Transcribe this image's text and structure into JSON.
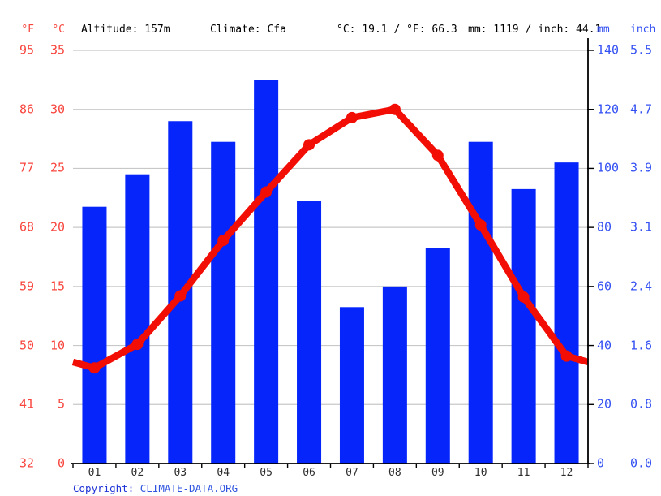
{
  "header": {
    "fahrenheit_label": "°F",
    "celsius_label": "°C",
    "altitude": "Altitude: 157m",
    "climate": "Climate: Cfa",
    "temperature_summary": "°C: 19.1 / °F: 66.3",
    "precipitation_summary": "mm: 1119 / inch: 44.1",
    "mm_label": "mm",
    "inch_label": "inch"
  },
  "axes": {
    "fahrenheit_ticks": [
      "95",
      "86",
      "77",
      "68",
      "59",
      "50",
      "41",
      "32"
    ],
    "celsius_ticks": [
      "35",
      "30",
      "25",
      "20",
      "15",
      "10",
      "5",
      "0"
    ],
    "mm_ticks": [
      "140",
      "120",
      "100",
      "80",
      "60",
      "40",
      "20",
      "0"
    ],
    "inch_ticks": [
      "5.5",
      "4.7",
      "3.9",
      "3.1",
      "2.4",
      "1.6",
      "0.8",
      "0.0"
    ]
  },
  "footer": {
    "copyright_label": "Copyright: ",
    "copyright_link": "CLIMATE-DATA.ORG"
  },
  "colors": {
    "bar_blue": "#0525fa",
    "line_red": "#f20d05",
    "red_text": "#f8453e",
    "blue_text": "#3350f2",
    "grid_gray": "#c8c8c8",
    "axis_black": "#000000"
  },
  "chart_data": {
    "type": "bar",
    "subtype": "climate combo: precipitation bars + temperature line",
    "categories": [
      "01",
      "02",
      "03",
      "04",
      "05",
      "06",
      "07",
      "08",
      "09",
      "10",
      "11",
      "12"
    ],
    "series": [
      {
        "name": "precipitation",
        "type": "bar",
        "unit": "mm",
        "values": [
          87,
          98,
          116,
          109,
          130,
          89,
          53,
          60,
          73,
          109,
          93,
          102
        ]
      },
      {
        "name": "temperature",
        "type": "line",
        "unit": "°C",
        "values": [
          8.1,
          10.1,
          14.2,
          18.9,
          23.0,
          27.0,
          29.3,
          30.0,
          26.1,
          20.2,
          14.1,
          9.1
        ],
        "edge_extension_value": 8.6
      }
    ],
    "left_axis": {
      "unit": "°C",
      "min": 0,
      "max": 35,
      "secondary_unit": "°F",
      "secondary_min": 32,
      "secondary_max": 95
    },
    "right_axis": {
      "unit": "mm",
      "min": 0,
      "max": 140,
      "secondary_unit": "inch",
      "secondary_min": 0.0,
      "secondary_max": 5.5
    },
    "grid": true,
    "legend": "none",
    "annual_mean_temp_c": 19.1,
    "annual_mean_temp_f": 66.3,
    "annual_precip_mm": 1119,
    "annual_precip_inch": 44.1
  }
}
